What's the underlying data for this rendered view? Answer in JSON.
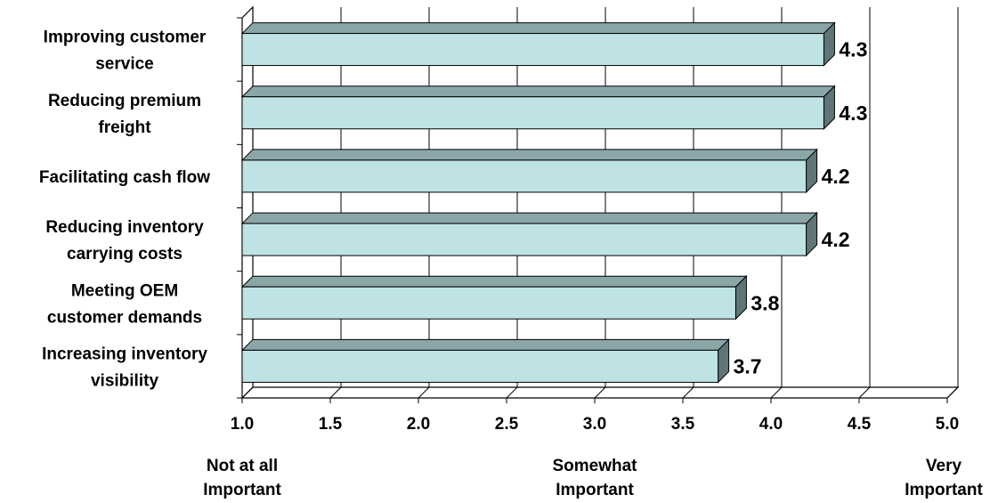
{
  "chart_data": {
    "type": "bar",
    "orientation": "horizontal",
    "style": "3d",
    "categories": [
      [
        "Improving customer",
        "service"
      ],
      [
        "Reducing premium",
        "freight"
      ],
      [
        "Facilitating cash flow"
      ],
      [
        "Reducing inventory",
        "carrying costs"
      ],
      [
        "Meeting OEM",
        "customer demands"
      ],
      [
        "Increasing inventory",
        "visibility"
      ]
    ],
    "values": [
      4.3,
      4.3,
      4.2,
      4.2,
      3.8,
      3.7
    ],
    "value_labels": [
      "4.3",
      "4.3",
      "4.2",
      "4.2",
      "3.8",
      "3.7"
    ],
    "xlim": [
      1.0,
      5.0
    ],
    "x_ticks": [
      1.0,
      1.5,
      2.0,
      2.5,
      3.0,
      3.5,
      4.0,
      4.5,
      5.0
    ],
    "x_tick_labels": [
      "1.0",
      "1.5",
      "2.0",
      "2.5",
      "3.0",
      "3.5",
      "4.0",
      "4.5",
      "5.0"
    ],
    "scale_labels": [
      {
        "value": 1.0,
        "lines": [
          "Not at all",
          "Important"
        ]
      },
      {
        "value": 3.0,
        "lines": [
          "Somewhat",
          "Important"
        ]
      },
      {
        "value": 5.0,
        "lines": [
          "Very",
          "Important"
        ]
      }
    ],
    "grid": true,
    "legend": "none",
    "colors": {
      "bar_front": "#bfe3e5",
      "bar_top": "#8aa6a8",
      "bar_side": "#5f7577",
      "floor": "#ffffff",
      "wall": "#ffffff",
      "grid": "#000000"
    }
  }
}
